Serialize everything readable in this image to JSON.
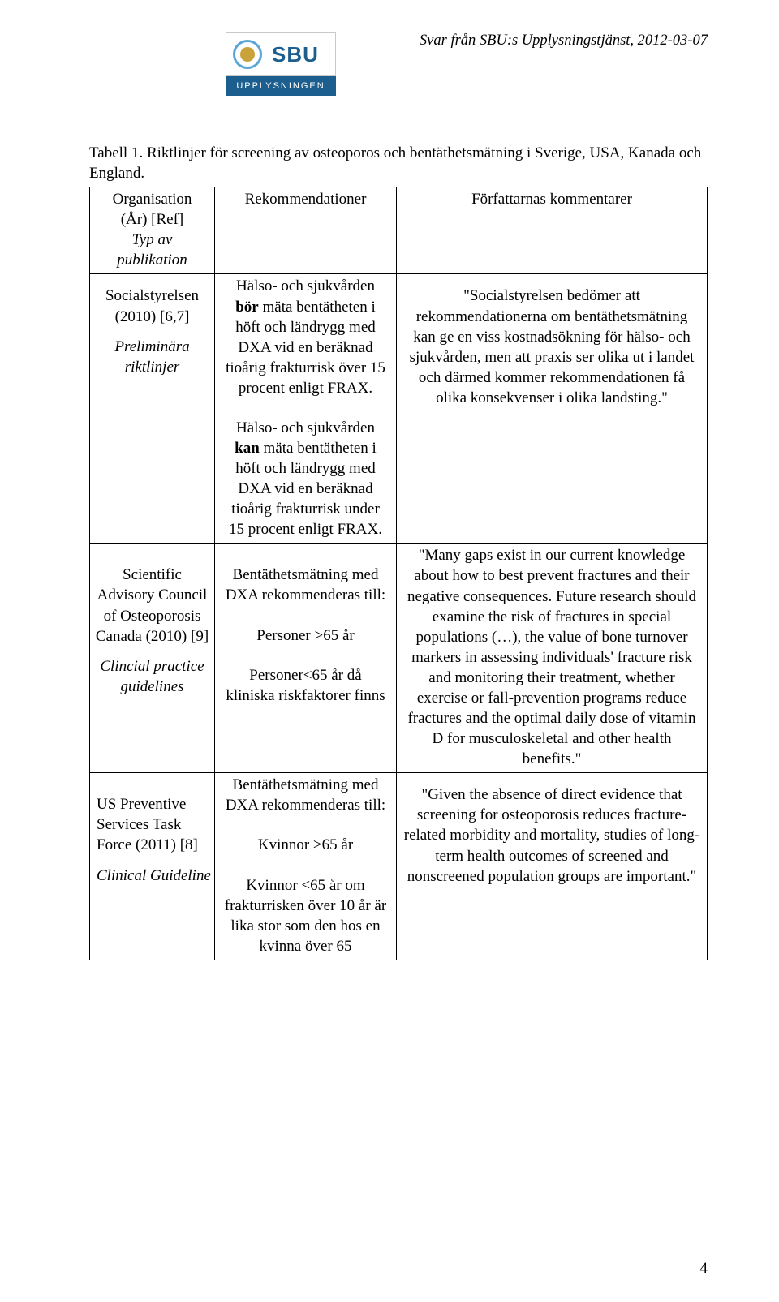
{
  "header": {
    "logo_text": "SBU",
    "logo_sub": "UPPLYSNINGEN",
    "doc_line": "Svar från SBU:s Upplysningstjänst, 2012-03-07"
  },
  "caption": "Tabell 1. Riktlinjer för screening av osteoporos och bentäthetsmätning i Sverige, USA, Kanada och England.",
  "table": {
    "head": {
      "org_l1": "Organisation",
      "org_l2": "(År) [Ref]",
      "org_l3": "Typ av publikation",
      "rec": "Rekommendationer",
      "com": "Författarnas kommentarer"
    },
    "rows": [
      {
        "org_name": "Socialstyrelsen (2010) [6,7]",
        "org_type": "Preliminära riktlinjer",
        "rec_p1": "Hälso- och sjukvården bör mäta bentätheten i höft och ländrygg med DXA vid en beräknad tioårig frakturrisk över 15 procent enligt FRAX.",
        "rec_p1_bold": "bör",
        "rec_p2": "Hälso- och sjukvården kan mäta bentätheten i höft och ländrygg med DXA vid en beräknad tioårig frakturrisk under 15 procent enligt FRAX.",
        "rec_p2_bold": "kan",
        "com": "\"Socialstyrelsen bedömer att rekommendationerna om bentäthetsmätning kan ge en viss kostnadsökning för hälso- och sjukvården, men att praxis ser olika ut i landet och därmed kommer rekommendationen få olika konsekvenser i olika landsting.\""
      },
      {
        "org_name": "Scientific Advisory Council of Osteoporosis Canada (2010) [9]",
        "org_type": "Clincial practice guidelines",
        "rec_l1": "Bentäthetsmätning med DXA rekommenderas till:",
        "rec_l2": "Personer >65 år",
        "rec_l3": "Personer<65 år då kliniska riskfaktorer finns",
        "com": "\"Many gaps exist in our current knowledge about how to best prevent fractures and their negative consequences. Future research should examine the risk of fractures in special populations (…), the value of bone turnover markers in assessing individuals' fracture risk and monitoring their treatment, whether exercise or fall-prevention programs reduce fractures and the optimal daily dose of vitamin D for musculoskeletal and other health benefits.\""
      },
      {
        "org_name": "US Preventive Services Task Force (2011) [8]",
        "org_type": "Clinical Guideline",
        "rec_l1": "Bentäthetsmätning med DXA rekommenderas till:",
        "rec_l2": "Kvinnor >65 år",
        "rec_l3": "Kvinnor <65 år om frakturrisken över 10 år är lika stor som den hos en kvinna över 65",
        "com": "\"Given the absence of direct evidence that screening for osteoporosis reduces fracture-related  morbidity and mortality, studies of long-term health outcomes of screened and nonscreened population groups are important.\""
      }
    ]
  },
  "page_number": "4"
}
